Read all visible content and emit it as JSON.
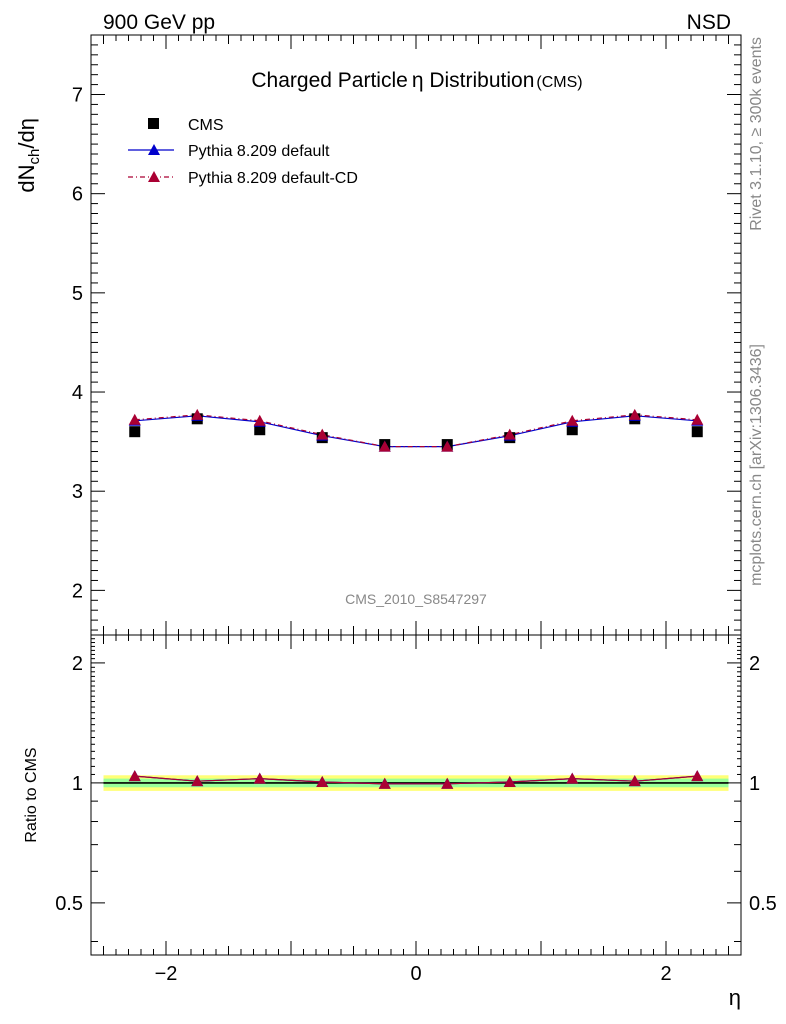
{
  "header": {
    "left_label": "900 GeV pp",
    "right_label": "NSD"
  },
  "side_labels": {
    "rivet": "Rivet 3.1.10, ≥ 300k events",
    "mcplots": "mcplots.cern.ch [arXiv:1306.3436]"
  },
  "watermark": "CMS_2010_S8547297",
  "chart_data": [
    {
      "type": "scatter",
      "title_main": "Charged Particle",
      "title_symbol": "η",
      "title_rest": " Distribution",
      "title_suffix": "(CMS)",
      "ylabel_main": "dN",
      "ylabel_sub": "ch",
      "ylabel_rest": "/dη",
      "xlabel": "η",
      "xlim": [
        -2.6,
        2.6
      ],
      "ylim": [
        1.55,
        7.6
      ],
      "yticks": [
        2,
        3,
        4,
        5,
        6,
        7
      ],
      "legend_position": "top-left",
      "x": [
        -2.25,
        -1.75,
        -1.25,
        -0.75,
        -0.25,
        0.25,
        0.75,
        1.25,
        1.75,
        2.25
      ],
      "series": [
        {
          "name": "CMS",
          "marker": "square",
          "color": "#000000",
          "values": [
            3.6,
            3.73,
            3.62,
            3.54,
            3.47,
            3.47,
            3.54,
            3.62,
            3.73,
            3.6
          ]
        },
        {
          "name": "Pythia 8.209 default",
          "marker": "triangle",
          "line": "solid",
          "color": "#0000cc",
          "values": [
            3.71,
            3.76,
            3.7,
            3.56,
            3.45,
            3.45,
            3.56,
            3.7,
            3.76,
            3.71
          ]
        },
        {
          "name": "Pythia 8.209 default-CD",
          "marker": "triangle",
          "line": "dashed",
          "color": "#aa0033",
          "values": [
            3.72,
            3.77,
            3.71,
            3.57,
            3.45,
            3.45,
            3.57,
            3.71,
            3.77,
            3.72
          ]
        }
      ]
    },
    {
      "type": "line",
      "ylabel": "Ratio to CMS",
      "xlabel": "η",
      "xlim": [
        -2.6,
        2.6
      ],
      "xticks": [
        -2,
        0,
        2
      ],
      "ylim": [
        0.37,
        2.35
      ],
      "yticks": [
        0.5,
        1,
        2
      ],
      "band_outer_halfwidth": 0.045,
      "band_inner_halfwidth": 0.025,
      "band_colors": {
        "outer": "#ffff77",
        "inner": "#99ff99"
      },
      "reference": 1,
      "x": [
        -2.25,
        -1.75,
        -1.25,
        -0.75,
        -0.25,
        0.25,
        0.75,
        1.25,
        1.75,
        2.25
      ],
      "series": [
        {
          "name": "Pythia 8.209 default",
          "color": "#0000cc",
          "values": [
            1.04,
            1.01,
            1.025,
            1.005,
            0.995,
            0.995,
            1.005,
            1.025,
            1.01,
            1.04
          ]
        },
        {
          "name": "Pythia 8.209 default-CD",
          "color": "#aa0033",
          "values": [
            1.04,
            1.01,
            1.025,
            1.005,
            0.995,
            0.995,
            1.005,
            1.025,
            1.01,
            1.04
          ]
        }
      ]
    }
  ]
}
